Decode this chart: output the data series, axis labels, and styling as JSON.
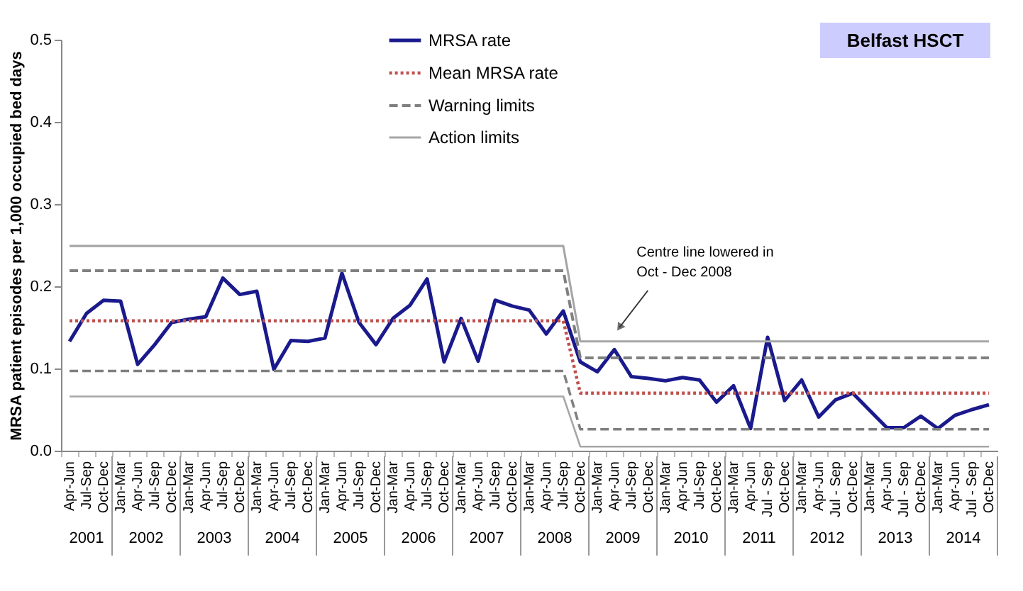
{
  "chart_data": {
    "type": "line",
    "title": "Belfast HSCT",
    "ylabel": "MRSA patient episodes per 1,000 occupied bed days",
    "categories": [
      "Apr-Jun",
      "Jul-Sep",
      "Oct-Dec",
      "Jan-Mar",
      "Apr-Jun",
      "Jul-Sep",
      "Oct-Dec",
      "Jan-Mar",
      "Apr-Jun",
      "Jul-Sep",
      "Oct-Dec",
      "Jan-Mar",
      "Apr-Jun",
      "Jul-Sep",
      "Oct-Dec",
      "Jan-Mar",
      "Apr-Jun",
      "Jul-Sep",
      "Oct-Dec",
      "Jan-Mar",
      "Apr-Jun",
      "Jul-Sep",
      "Oct-Dec",
      "Jan-Mar",
      "Apr-Jun",
      "Jul-Sep",
      "Oct-Dec",
      "Jan-Mar",
      "Apr-Jun",
      "Jul-Sep",
      "Oct-Dec",
      "Jan-Mar",
      "Apr-Jun",
      "Jul-Sep",
      "Oct-Dec",
      "Jan-Mar",
      "Apr-Jun",
      "Jul-Sep",
      "Oct-Dec",
      "Jan-Mar",
      "Apr-Jun",
      "Jul - Sep",
      "Oct-Dec",
      "Jan-Mar",
      "Apr-Jun",
      "Jul - Sep",
      "Oct-Dec",
      "Jan-Mar",
      "Apr-Jun",
      "Jul - Sep",
      "Oct-Dec",
      "Jan-Mar",
      "Apr-Jun",
      "Jul - Sep",
      "Oct-Dec"
    ],
    "series": [
      {
        "name": "MRSA rate",
        "color": "#1a1a8c",
        "line_style": "solid",
        "values": [
          0.133,
          0.167,
          0.183,
          0.182,
          0.105,
          0.129,
          0.156,
          0.16,
          0.163,
          0.21,
          0.19,
          0.194,
          0.099,
          0.134,
          0.133,
          0.137,
          0.216,
          0.156,
          0.129,
          0.161,
          0.177,
          0.209,
          0.108,
          0.161,
          0.109,
          0.183,
          0.176,
          0.171,
          0.142,
          0.17,
          0.108,
          0.096,
          0.123,
          0.09,
          0.088,
          0.085,
          0.089,
          0.086,
          0.059,
          0.079,
          0.027,
          0.138,
          0.061,
          0.086,
          0.041,
          0.062,
          0.07,
          0.049,
          0.028,
          0.028,
          0.042,
          0.027,
          0.043,
          0.05,
          0.056
        ]
      },
      {
        "name": "Mean MRSA rate",
        "color": "#c0504d",
        "line_style": "dotted",
        "values": [
          0.158,
          0.158,
          0.158,
          0.158,
          0.158,
          0.158,
          0.158,
          0.158,
          0.158,
          0.158,
          0.158,
          0.158,
          0.158,
          0.158,
          0.158,
          0.158,
          0.158,
          0.158,
          0.158,
          0.158,
          0.158,
          0.158,
          0.158,
          0.158,
          0.158,
          0.158,
          0.158,
          0.158,
          0.158,
          0.158,
          0.07,
          0.07,
          0.07,
          0.07,
          0.07,
          0.07,
          0.07,
          0.07,
          0.07,
          0.07,
          0.07,
          0.07,
          0.07,
          0.07,
          0.07,
          0.07,
          0.07,
          0.07,
          0.07,
          0.07,
          0.07,
          0.07,
          0.07,
          0.07,
          0.07
        ]
      },
      {
        "name": "Warning limits",
        "color": "#808080",
        "line_style": "dashed",
        "values": [
          0.219,
          0.219,
          0.219,
          0.219,
          0.219,
          0.219,
          0.219,
          0.219,
          0.219,
          0.219,
          0.219,
          0.219,
          0.219,
          0.219,
          0.219,
          0.219,
          0.219,
          0.219,
          0.219,
          0.219,
          0.219,
          0.219,
          0.219,
          0.219,
          0.219,
          0.219,
          0.219,
          0.219,
          0.219,
          0.219,
          0.113,
          0.113,
          0.113,
          0.113,
          0.113,
          0.113,
          0.113,
          0.113,
          0.113,
          0.113,
          0.113,
          0.113,
          0.113,
          0.113,
          0.113,
          0.113,
          0.113,
          0.113,
          0.113,
          0.113,
          0.113,
          0.113,
          0.113,
          0.113,
          0.113
        ]
      },
      {
        "color": "#808080",
        "line_style": "dashed",
        "values": [
          0.097,
          0.097,
          0.097,
          0.097,
          0.097,
          0.097,
          0.097,
          0.097,
          0.097,
          0.097,
          0.097,
          0.097,
          0.097,
          0.097,
          0.097,
          0.097,
          0.097,
          0.097,
          0.097,
          0.097,
          0.097,
          0.097,
          0.097,
          0.097,
          0.097,
          0.097,
          0.097,
          0.097,
          0.097,
          0.097,
          0.026,
          0.026,
          0.026,
          0.026,
          0.026,
          0.026,
          0.026,
          0.026,
          0.026,
          0.026,
          0.026,
          0.026,
          0.026,
          0.026,
          0.026,
          0.026,
          0.026,
          0.026,
          0.026,
          0.026,
          0.026,
          0.026,
          0.026,
          0.026,
          0.026
        ]
      },
      {
        "name": "Action limits",
        "color": "#a6a6a6",
        "line_style": "solid",
        "values": [
          0.249,
          0.249,
          0.249,
          0.249,
          0.249,
          0.249,
          0.249,
          0.249,
          0.249,
          0.249,
          0.249,
          0.249,
          0.249,
          0.249,
          0.249,
          0.249,
          0.249,
          0.249,
          0.249,
          0.249,
          0.249,
          0.249,
          0.249,
          0.249,
          0.249,
          0.249,
          0.249,
          0.249,
          0.249,
          0.249,
          0.133,
          0.133,
          0.133,
          0.133,
          0.133,
          0.133,
          0.133,
          0.133,
          0.133,
          0.133,
          0.133,
          0.133,
          0.133,
          0.133,
          0.133,
          0.133,
          0.133,
          0.133,
          0.133,
          0.133,
          0.133,
          0.133,
          0.133,
          0.133,
          0.133
        ]
      },
      {
        "color": "#a6a6a6",
        "line_style": "solid",
        "values": [
          0.066,
          0.066,
          0.066,
          0.066,
          0.066,
          0.066,
          0.066,
          0.066,
          0.066,
          0.066,
          0.066,
          0.066,
          0.066,
          0.066,
          0.066,
          0.066,
          0.066,
          0.066,
          0.066,
          0.066,
          0.066,
          0.066,
          0.066,
          0.066,
          0.066,
          0.066,
          0.066,
          0.066,
          0.066,
          0.066,
          0.005,
          0.005,
          0.005,
          0.005,
          0.005,
          0.005,
          0.005,
          0.005,
          0.005,
          0.005,
          0.005,
          0.005,
          0.005,
          0.005,
          0.005,
          0.005,
          0.005,
          0.005,
          0.005,
          0.005,
          0.005,
          0.005,
          0.005,
          0.005,
          0.005
        ]
      }
    ],
    "ylim": [
      0,
      0.5
    ],
    "yticks": [
      {
        "value": 0,
        "label": "0.0"
      },
      0.1,
      0.2,
      0.3,
      0.4,
      0.5
    ],
    "grid": false,
    "legend": "top",
    "marker": "none",
    "annotations": [
      "Centre line lowered in\nOct - Dec 2008",
      "2001",
      "2002",
      "2003",
      "2004",
      "2005",
      "2006",
      "2007",
      "2008",
      "2009",
      "2010",
      "2011",
      "2012",
      "2013",
      "2014"
    ]
  }
}
